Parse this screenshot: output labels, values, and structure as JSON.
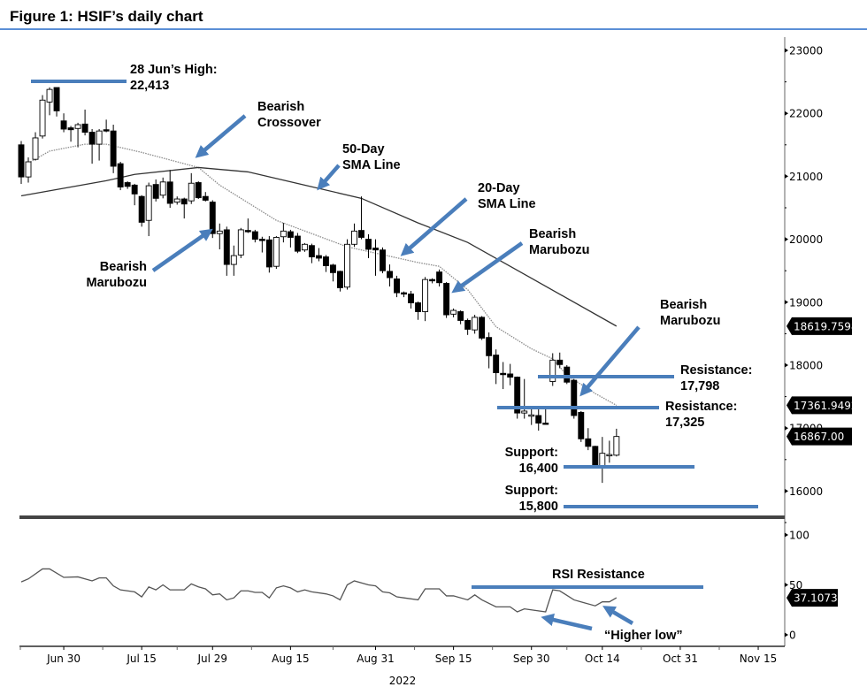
{
  "title": "Figure 1: HSIF’s daily chart",
  "colors": {
    "annotation_blue": "#4a7ebb",
    "title_rule": "#5b8fd6",
    "bull_fill": "#ffffff",
    "bear_fill": "#000000",
    "sma20": "#8c8c8c",
    "sma50": "#333333",
    "rsi": "#555555"
  },
  "annotations": {
    "high": {
      "line1": "28 Jun’s High:",
      "line2": "22,413",
      "level": 22413
    },
    "crossover": {
      "line1": "Bearish",
      "line2": "Crossover"
    },
    "sma50": {
      "line1": "50-Day",
      "line2": "SMA Line"
    },
    "sma20": {
      "line1": "20-Day",
      "line2": "SMA Line"
    },
    "marubozu_mid": {
      "line1": "Bearish",
      "line2": "Marubozu"
    },
    "marubozu_left": {
      "line1": "Bearish",
      "line2": "Marubozu"
    },
    "marubozu_right": {
      "line1": "Bearish",
      "line2": "Marubozu"
    },
    "resistance1": {
      "line1": "Resistance:",
      "line2": "17,798",
      "level": 17798
    },
    "resistance2": {
      "line1": "Resistance:",
      "line2": "17,325",
      "level": 17325
    },
    "support1": {
      "line1": "Support:",
      "line2": "16,400",
      "level": 16400
    },
    "support2": {
      "line1": "Support:",
      "line2": "15,800",
      "level": 15800
    },
    "rsi_resistance": {
      "label": "RSI Resistance",
      "level": 48
    },
    "higher_low": {
      "label": "“Higher low”"
    }
  },
  "chart_data": [
    {
      "type": "candlestick",
      "panel": "price",
      "ylim": [
        15700,
        23200
      ],
      "yticks": [
        16000,
        17000,
        18000,
        19000,
        20000,
        21000,
        22000,
        23000
      ],
      "ytick_labels": [
        "16000",
        "17000",
        "18000",
        "19000",
        "20000",
        "21000",
        "22000",
        "23000"
      ],
      "grid": false,
      "last_value_tags": {
        "sma50": "18619.7598",
        "sma20": "17361.9492",
        "close": "16867.00"
      },
      "candles_format": [
        "date",
        "open",
        "high",
        "low",
        "close"
      ],
      "candles": [
        [
          "2022-06-22",
          21500,
          21560,
          20880,
          20990
        ],
        [
          "2022-06-23",
          20990,
          21300,
          20900,
          21230
        ],
        [
          "2022-06-24",
          21270,
          21700,
          21250,
          21610
        ],
        [
          "2022-06-27",
          21640,
          22290,
          21600,
          22210
        ],
        [
          "2022-06-28",
          22180,
          22413,
          21970,
          22380
        ],
        [
          "2022-06-29",
          22410,
          22400,
          21950,
          22040
        ],
        [
          "2022-06-30",
          21880,
          22000,
          21700,
          21750
        ],
        [
          "2022-07-01",
          21770,
          21800,
          21550,
          21740
        ],
        [
          "2022-07-04",
          21760,
          21850,
          21460,
          21820
        ],
        [
          "2022-07-05",
          21830,
          22060,
          21650,
          21700
        ],
        [
          "2022-07-06",
          21700,
          21750,
          21200,
          21510
        ],
        [
          "2022-07-07",
          21510,
          21750,
          21250,
          21720
        ],
        [
          "2022-07-08",
          21740,
          21900,
          21700,
          21720
        ],
        [
          "2022-07-11",
          21720,
          21820,
          21050,
          21160
        ],
        [
          "2022-07-12",
          21200,
          21230,
          20780,
          20830
        ],
        [
          "2022-07-13",
          20900,
          20920,
          20800,
          20840
        ],
        [
          "2022-07-14",
          20860,
          20880,
          20540,
          20720
        ],
        [
          "2022-07-15",
          20680,
          20700,
          20200,
          20270
        ],
        [
          "2022-07-18",
          20300,
          20900,
          20050,
          20850
        ],
        [
          "2022-07-19",
          20870,
          20950,
          20600,
          20650
        ],
        [
          "2022-07-20",
          20700,
          20980,
          20650,
          20910
        ],
        [
          "2022-07-21",
          20910,
          21100,
          20500,
          20570
        ],
        [
          "2022-07-22",
          20590,
          20680,
          20550,
          20640
        ],
        [
          "2022-07-25",
          20640,
          20660,
          20330,
          20560
        ],
        [
          "2022-07-26",
          20610,
          21050,
          20560,
          20890
        ],
        [
          "2022-07-27",
          20900,
          20920,
          20640,
          20660
        ],
        [
          "2022-07-28",
          20680,
          20750,
          20600,
          20620
        ],
        [
          "2022-07-29",
          20590,
          20620,
          20020,
          20090
        ],
        [
          "2022-08-01",
          20090,
          20250,
          19840,
          20130
        ],
        [
          "2022-08-02",
          20150,
          20200,
          19420,
          19600
        ],
        [
          "2022-08-03",
          19600,
          19900,
          19420,
          19740
        ],
        [
          "2022-08-04",
          19750,
          20180,
          19700,
          20150
        ],
        [
          "2022-08-05",
          20140,
          20330,
          20100,
          20120
        ],
        [
          "2022-08-08",
          20120,
          20150,
          19950,
          20000
        ],
        [
          "2022-08-09",
          20000,
          20040,
          19790,
          19990
        ],
        [
          "2022-08-10",
          19990,
          20050,
          19470,
          19560
        ],
        [
          "2022-08-11",
          19570,
          20050,
          19530,
          20030
        ],
        [
          "2022-08-12",
          20040,
          20260,
          19950,
          20130
        ],
        [
          "2022-08-15",
          20120,
          20150,
          19870,
          20030
        ],
        [
          "2022-08-16",
          20050,
          20100,
          19780,
          19810
        ],
        [
          "2022-08-17",
          19830,
          19940,
          19800,
          19920
        ],
        [
          "2022-08-18",
          19900,
          19930,
          19620,
          19720
        ],
        [
          "2022-08-19",
          19740,
          19860,
          19650,
          19700
        ],
        [
          "2022-08-22",
          19720,
          19750,
          19480,
          19580
        ],
        [
          "2022-08-23",
          19590,
          19610,
          19330,
          19470
        ],
        [
          "2022-08-24",
          19490,
          19500,
          19170,
          19230
        ],
        [
          "2022-08-25",
          19240,
          20000,
          19200,
          19920
        ],
        [
          "2022-08-26",
          19920,
          20250,
          19880,
          20130
        ],
        [
          "2022-08-29",
          20140,
          20680,
          20000,
          20030
        ],
        [
          "2022-08-30",
          20000,
          20080,
          19700,
          19840
        ],
        [
          "2022-08-31",
          19860,
          20000,
          19420,
          19830
        ],
        [
          "2022-09-01",
          19830,
          19870,
          19460,
          19500
        ],
        [
          "2022-09-02",
          19490,
          19600,
          19250,
          19390
        ],
        [
          "2022-09-05",
          19370,
          19420,
          19080,
          19150
        ],
        [
          "2022-09-06",
          19150,
          19170,
          19080,
          19140
        ],
        [
          "2022-09-07",
          19130,
          19180,
          18900,
          18990
        ],
        [
          "2022-09-08",
          18990,
          19010,
          18720,
          18850
        ],
        [
          "2022-09-09",
          18850,
          19400,
          18700,
          19360
        ],
        [
          "2022-09-12",
          19360,
          19380,
          19300,
          19350
        ],
        [
          "2022-09-13",
          19480,
          19520,
          19250,
          19310
        ],
        [
          "2022-09-14",
          19300,
          19320,
          18750,
          18800
        ],
        [
          "2022-09-15",
          18810,
          18900,
          18760,
          18870
        ],
        [
          "2022-09-16",
          18850,
          18870,
          18650,
          18710
        ],
        [
          "2022-09-19",
          18710,
          18740,
          18480,
          18570
        ],
        [
          "2022-09-20",
          18560,
          18800,
          18500,
          18760
        ],
        [
          "2022-09-21",
          18760,
          18780,
          18400,
          18430
        ],
        [
          "2022-09-22",
          18440,
          18520,
          17950,
          18150
        ],
        [
          "2022-09-23",
          18160,
          18250,
          17700,
          17880
        ],
        [
          "2022-09-26",
          17870,
          18050,
          17620,
          17860
        ],
        [
          "2022-09-27",
          17860,
          18020,
          17680,
          17810
        ],
        [
          "2022-09-28",
          17810,
          17820,
          17150,
          17240
        ],
        [
          "2022-09-29",
          17240,
          17780,
          17150,
          17270
        ],
        [
          "2022-09-30",
          17200,
          17350,
          17050,
          17210
        ],
        [
          "2022-10-03",
          17200,
          17320,
          16960,
          17080
        ],
        [
          "2022-10-04",
          17080,
          17300,
          17070,
          17070
        ],
        [
          "2022-10-05",
          17740,
          18190,
          17670,
          18080
        ],
        [
          "2022-10-06",
          18080,
          18200,
          17950,
          18010
        ],
        [
          "2022-10-07",
          17970,
          18000,
          17700,
          17730
        ],
        [
          "2022-10-10",
          17760,
          17780,
          17150,
          17200
        ],
        [
          "2022-10-11",
          17250,
          17270,
          16780,
          16830
        ],
        [
          "2022-10-12",
          16830,
          17000,
          16650,
          16710
        ],
        [
          "2022-10-13",
          16710,
          16720,
          16380,
          16400
        ],
        [
          "2022-10-14",
          16400,
          16860,
          16130,
          16600
        ],
        [
          "2022-10-17",
          16570,
          16800,
          16450,
          16580
        ],
        [
          "2022-10-18",
          16570,
          16990,
          16550,
          16867
        ]
      ],
      "series": [
        {
          "key": "sma20",
          "style": "dotted",
          "points": [
            [
              "2022-06-23",
              21210
            ],
            [
              "2022-06-28",
              21400
            ],
            [
              "2022-07-05",
              21510
            ],
            [
              "2022-07-08",
              21510
            ],
            [
              "2022-07-15",
              21380
            ],
            [
              "2022-07-22",
              21230
            ],
            [
              "2022-07-27",
              21140
            ],
            [
              "2022-08-01",
              20860
            ],
            [
              "2022-08-11",
              20300
            ],
            [
              "2022-08-25",
              19880
            ],
            [
              "2022-09-08",
              19630
            ],
            [
              "2022-09-13",
              19570
            ],
            [
              "2022-09-19",
              19200
            ],
            [
              "2022-09-23",
              18610
            ],
            [
              "2022-09-30",
              18260
            ],
            [
              "2022-10-05",
              18100
            ],
            [
              "2022-10-07",
              17840
            ],
            [
              "2022-10-13",
              17550
            ],
            [
              "2022-10-18",
              17361.9492
            ]
          ]
        },
        {
          "key": "sma50",
          "style": "solid",
          "points": [
            [
              "2022-06-22",
              20690
            ],
            [
              "2022-07-08",
              20930
            ],
            [
              "2022-07-14",
              21030
            ],
            [
              "2022-07-27",
              21140
            ],
            [
              "2022-08-05",
              21070
            ],
            [
              "2022-08-17",
              20860
            ],
            [
              "2022-08-29",
              20650
            ],
            [
              "2022-09-08",
              20260
            ],
            [
              "2022-09-19",
              19950
            ],
            [
              "2022-09-30",
              19380
            ],
            [
              "2022-10-18",
              18619.7598
            ]
          ]
        }
      ]
    },
    {
      "type": "line",
      "panel": "rsi",
      "ylim": [
        0,
        100
      ],
      "yticks": [
        0,
        50,
        100
      ],
      "ytick_labels": [
        "0",
        "50",
        "100"
      ],
      "last_value_tag": "37.1073",
      "points": [
        [
          "2022-06-22",
          53
        ],
        [
          "2022-06-23",
          56
        ],
        [
          "2022-06-27",
          66
        ],
        [
          "2022-06-28",
          66
        ],
        [
          "2022-06-30",
          57.5
        ],
        [
          "2022-07-04",
          58
        ],
        [
          "2022-07-06",
          54
        ],
        [
          "2022-07-07",
          57
        ],
        [
          "2022-07-08",
          57
        ],
        [
          "2022-07-11",
          49
        ],
        [
          "2022-07-12",
          45
        ],
        [
          "2022-07-14",
          43
        ],
        [
          "2022-07-15",
          38
        ],
        [
          "2022-07-18",
          48
        ],
        [
          "2022-07-19",
          45
        ],
        [
          "2022-07-20",
          50
        ],
        [
          "2022-07-21",
          45
        ],
        [
          "2022-07-25",
          45
        ],
        [
          "2022-07-26",
          51
        ],
        [
          "2022-07-27",
          48
        ],
        [
          "2022-07-28",
          46
        ],
        [
          "2022-07-29",
          40
        ],
        [
          "2022-08-01",
          41
        ],
        [
          "2022-08-02",
          35
        ],
        [
          "2022-08-03",
          37
        ],
        [
          "2022-08-04",
          44
        ],
        [
          "2022-08-05",
          44
        ],
        [
          "2022-08-08",
          42.5
        ],
        [
          "2022-08-09",
          42.5
        ],
        [
          "2022-08-10",
          37
        ],
        [
          "2022-08-11",
          47
        ],
        [
          "2022-08-12",
          49
        ],
        [
          "2022-08-15",
          47
        ],
        [
          "2022-08-16",
          43
        ],
        [
          "2022-08-17",
          45
        ],
        [
          "2022-08-18",
          43
        ],
        [
          "2022-08-22",
          41
        ],
        [
          "2022-08-23",
          39
        ],
        [
          "2022-08-24",
          35
        ],
        [
          "2022-08-25",
          50
        ],
        [
          "2022-08-26",
          54
        ],
        [
          "2022-08-30",
          50
        ],
        [
          "2022-08-31",
          49
        ],
        [
          "2022-09-01",
          43
        ],
        [
          "2022-09-02",
          42
        ],
        [
          "2022-09-05",
          38
        ],
        [
          "2022-09-06",
          37
        ],
        [
          "2022-09-08",
          35
        ],
        [
          "2022-09-09",
          46
        ],
        [
          "2022-09-13",
          46
        ],
        [
          "2022-09-14",
          39
        ],
        [
          "2022-09-15",
          39
        ],
        [
          "2022-09-19",
          35
        ],
        [
          "2022-09-20",
          40
        ],
        [
          "2022-09-21",
          35
        ],
        [
          "2022-09-23",
          28
        ],
        [
          "2022-09-27",
          28
        ],
        [
          "2022-09-28",
          23
        ],
        [
          "2022-09-29",
          26
        ],
        [
          "2022-10-04",
          23
        ],
        [
          "2022-10-05",
          45
        ],
        [
          "2022-10-06",
          44
        ],
        [
          "2022-10-10",
          35
        ],
        [
          "2022-10-11",
          33
        ],
        [
          "2022-10-13",
          29
        ],
        [
          "2022-10-14",
          33
        ],
        [
          "2022-10-17",
          33
        ],
        [
          "2022-10-18",
          37.1073
        ]
      ]
    }
  ],
  "x_axis": {
    "ticks": [
      [
        "2022-06-30",
        "Jun 30"
      ],
      [
        "2022-07-15",
        "Jul 15"
      ],
      [
        "2022-07-29",
        "Jul 29"
      ],
      [
        "2022-08-15",
        "Aug 15"
      ],
      [
        "2022-08-31",
        "Aug 31"
      ],
      [
        "2022-09-15",
        "Sep 15"
      ],
      [
        "2022-09-30",
        "Sep 30"
      ],
      [
        "2022-10-14",
        "Oct 14"
      ],
      [
        "2022-10-31",
        "Oct 31"
      ],
      [
        "2022-11-15",
        "Nov 15"
      ]
    ],
    "year_label": "2022"
  }
}
